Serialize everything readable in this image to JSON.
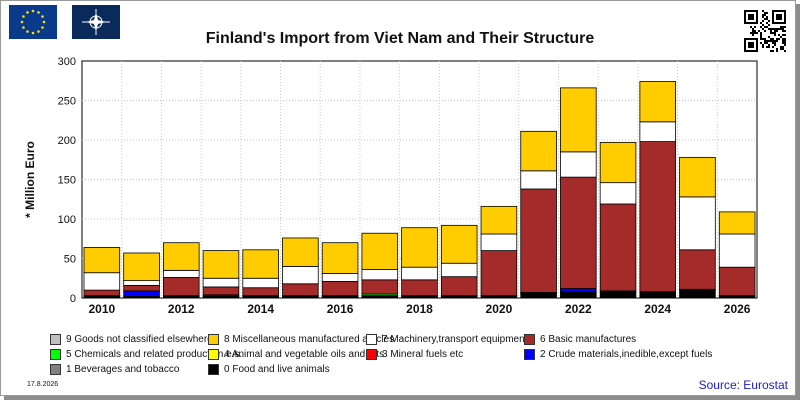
{
  "title": "Finland's Import from Viet Nam and Their Structure",
  "footer": {
    "date": "17.8.2026",
    "source": "Source: Eurostat"
  },
  "header": {
    "left_flag_icon": "eu-flag-icon",
    "right_flag_icon": "nato-flag-icon",
    "qr_icon": "qr-code-icon"
  },
  "chart_data": {
    "type": "bar",
    "stacked": true,
    "title": "Finland's Import from Viet Nam and Their Structure",
    "ylabel": "* Million Euro",
    "xlabel": "",
    "ylim": [
      0,
      300
    ],
    "yticks": [
      0,
      50,
      100,
      150,
      200,
      250,
      300
    ],
    "grid": true,
    "categories": [
      "2010",
      "2011",
      "2012",
      "2013",
      "2014",
      "2015",
      "2016",
      "2017",
      "2018",
      "2019",
      "2020",
      "2021",
      "2022",
      "2023",
      "2024",
      "2025",
      "2026"
    ],
    "x_tick_labels": [
      "2010",
      "2012",
      "2014",
      "2016",
      "2018",
      "2020",
      "2022",
      "2024",
      "2026"
    ],
    "series": [
      {
        "name": "0 Food and live animals",
        "color": "#000000",
        "values": [
          2,
          2,
          2,
          2,
          2,
          2,
          2,
          2,
          2,
          2,
          3,
          5,
          8,
          8,
          8,
          10,
          3
        ]
      },
      {
        "name": "1 Beverages and tobacco",
        "color": "#808080",
        "values": [
          0,
          0,
          0,
          0,
          0,
          0,
          0,
          0,
          0,
          0,
          0,
          0,
          0,
          0,
          0,
          0,
          0
        ]
      },
      {
        "name": "2 Crude materials,inedible,except fuels",
        "color": "#0000ff",
        "values": [
          1,
          7,
          1,
          2,
          1,
          1,
          1,
          1,
          1,
          1,
          0,
          1,
          4,
          1,
          0,
          1,
          0
        ]
      },
      {
        "name": "3 Mineral fuels etc",
        "color": "#ff0000",
        "values": [
          0,
          0,
          0,
          0,
          0,
          0,
          0,
          0,
          0,
          0,
          0,
          0,
          0,
          0,
          0,
          0,
          0
        ]
      },
      {
        "name": "4 Animal and vegetable oils and fats",
        "color": "#ffff00",
        "values": [
          0,
          0,
          0,
          0,
          0,
          0,
          0,
          0,
          0,
          0,
          0,
          0,
          0,
          0,
          0,
          0,
          0
        ]
      },
      {
        "name": "5 Chemicals and related products,n.e.s.",
        "color": "#00ff00",
        "values": [
          0,
          0,
          0,
          0,
          0,
          0,
          0,
          2,
          0,
          0,
          0,
          1,
          0,
          0,
          0,
          0,
          0
        ]
      },
      {
        "name": "6 Basic manufactures",
        "color": "#a52a2a",
        "values": [
          7,
          7,
          23,
          10,
          10,
          15,
          18,
          18,
          20,
          24,
          57,
          131,
          141,
          110,
          190,
          50,
          36
        ]
      },
      {
        "name": "7 Machinery,transport equipment",
        "color": "#ffffff",
        "values": [
          22,
          6,
          9,
          11,
          12,
          22,
          10,
          13,
          16,
          17,
          21,
          23,
          32,
          27,
          25,
          67,
          42
        ]
      },
      {
        "name": "8 Miscellaneous manufactured articles",
        "color": "#ffcc00",
        "values": [
          32,
          35,
          35,
          35,
          36,
          36,
          39,
          46,
          50,
          48,
          35,
          50,
          81,
          51,
          51,
          50,
          28
        ]
      },
      {
        "name": "9 Goods not classified elsewhere",
        "color": "#c0c0c0",
        "values": [
          0,
          0,
          0,
          0,
          0,
          0,
          0,
          0,
          0,
          0,
          0,
          0,
          0,
          0,
          0,
          0,
          0
        ]
      }
    ],
    "legend_order": [
      9,
      8,
      7,
      6,
      5,
      4,
      3,
      2,
      1,
      0
    ],
    "legend_placement": "bottom"
  }
}
